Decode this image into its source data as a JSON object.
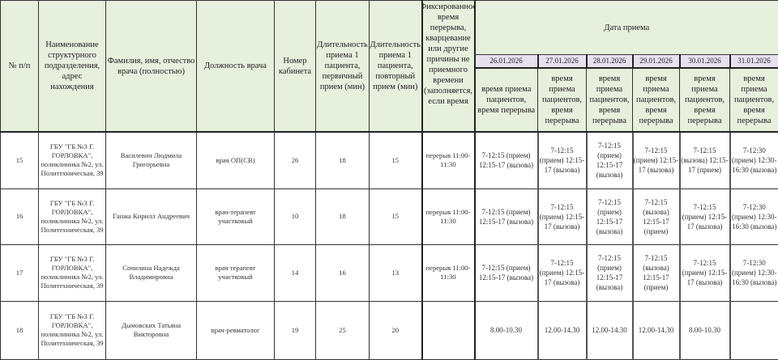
{
  "header": {
    "num": "№ п/п",
    "department": "Наименование структурного подразделения, адрес нахождения",
    "doctor_name": "Фамилия, имя, отчество врача (полностью)",
    "position": "Должность врача",
    "cabinet": "Номер кабинета",
    "duration_primary": "Длительность приема 1 пациента, первичный прием (мин)",
    "duration_repeat": "Длительность приема 1 пациента, повторный прием (мин)",
    "break": "Фиксированное время перерыва, кварцевание или другие причины не приемного времени (заполняется, если время",
    "date_group": "Дата приема",
    "dates": [
      "26.01.2026",
      "27.01.2026",
      "28.01.2026",
      "29.01.2026",
      "30.01.2026",
      "31.01.2026"
    ],
    "sub": [
      "время приема пациентов, время перерыва",
      "время приема пациентов, время перерыва",
      "время приема пациентов, время перерыва",
      "время приема пациентов, время перерыва",
      "время приема пациентов, время перерыва",
      "время приема пациентов, время перерыва"
    ]
  },
  "rows": [
    {
      "num": "15",
      "department": "ГБУ \"ГБ №3 Г. ГОРЛОВКА\", поликлиника №2, ул. Политехническая, 39",
      "doctor": "Василевич Людмила Григорьевна",
      "position": "врач ОП(СВ)",
      "cabinet": "26",
      "primary": "18",
      "repeat": "15",
      "break": "перерыв 11:00-11:30",
      "schedule": [
        "7-12:15 (прием) 12:15-17 (вызова)",
        "7-12:15 (прием) 12:15-17 (вызова)",
        "7-12:15 (прием) 12:15-17 (вызова)",
        "7-12:15 (прием) 12:15-17 (вызова)",
        "7-12:15 (вызова) 12:15-17 (прием)",
        "7-12:30 (прием) 12:30-16:30 (вызова)"
      ]
    },
    {
      "num": "16",
      "department": "ГБУ \"ГБ №3 Г. ГОРЛОВКА\", поликлиника №2, ул. Политехническая, 39",
      "doctor": "Ганжа Кирилл Андреевич",
      "position": "врач-терапевт участковый",
      "cabinet": "10",
      "primary": "18",
      "repeat": "15",
      "break": "перерыв 11:00-11:30",
      "schedule": [
        "7-12:15 (прием) 12:15-17 (вызова)",
        "7-12:15 (прием) 12:15-17 (вызова)",
        "7-12:15 (прием) 12:15-17 (вызова)",
        "7-12:15 (вызова) 12:15-17 (прием)",
        "7-12:15 (прием) 12:15-17 (вызова)",
        "7-12:30 (прием) 12:30-16:30 (вызова)"
      ]
    },
    {
      "num": "17",
      "department": "ГБУ \"ГБ №3 Г. ГОРЛОВКА\", поликлиника №2, ул. Политехническая, 39",
      "doctor": "Сочилина Надежда Владимировна",
      "position": "врач терапевт участковый",
      "cabinet": "14",
      "primary": "16",
      "repeat": "13",
      "break": "перерыв 11:00-11:30",
      "schedule": [
        "7-12:15 (прием) 12:15-17 (вызова)",
        "7-12:15 (прием) 12:15-17 (вызова)",
        "7-12:15 (прием) 12:15-17 (вызова)",
        "7-12:15 (вызова) 12:15-17 (прием)",
        "7-12:15 (прием) 12:15-17 (вызова)",
        "7-12:30 (прием) 12:30-16:30 (вызова)"
      ]
    },
    {
      "num": "18",
      "department": "ГБУ \"ГБ №3 Г. ГОРЛОВКА\", поликлиника №2, ул. Политехническая, 39",
      "doctor": "Дымовских Татьяна Викторовна",
      "position": "врач-ревматолог",
      "cabinet": "19",
      "primary": "25",
      "repeat": "20",
      "break": "",
      "schedule": [
        "8.00-10.30",
        "12.00-14.30",
        "12.00-14.30",
        "12.00-14.30",
        "8.00-10.30",
        ""
      ]
    }
  ]
}
